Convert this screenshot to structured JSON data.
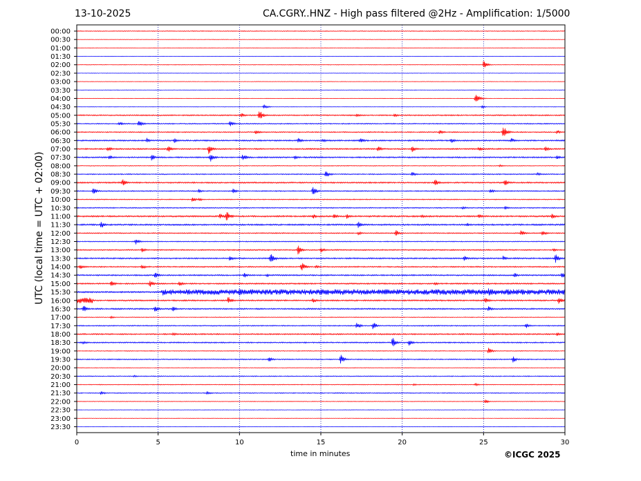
{
  "header": {
    "date": "13-10-2025",
    "title": "CA.CGRY..HNZ - High pass filtered @2Hz - Amplification: 1/5000"
  },
  "footer": {
    "copyright": "©ICGC 2025"
  },
  "colors": {
    "red": "#ff0000",
    "blue": "#0000ff",
    "grid": "#0000aa"
  },
  "chart_data": {
    "type": "line",
    "title": "CA.CGRY..HNZ - High pass filtered @2Hz - Amplification: 1/5000",
    "xlabel": "time in minutes",
    "ylabel": "UTC (local time = UTC + 02:00)",
    "xlim": [
      0,
      30
    ],
    "xticks": [
      "0",
      "5",
      "10",
      "15",
      "20",
      "25",
      "30"
    ],
    "grid": "vertical dotted at every 5 minutes",
    "row_colors": [
      "red",
      "red",
      "red",
      "blue",
      "red",
      "blue",
      "red",
      "blue",
      "red",
      "blue",
      "red",
      "blue",
      "red",
      "blue",
      "red",
      "blue",
      "red",
      "blue",
      "red",
      "blue",
      "red",
      "blue",
      "red",
      "blue",
      "red",
      "blue",
      "red",
      "blue",
      "red",
      "blue",
      "red",
      "blue",
      "red",
      "blue",
      "red",
      "blue",
      "red",
      "blue",
      "red",
      "blue",
      "red",
      "blue",
      "red",
      "blue",
      "red",
      "blue",
      "red",
      "blue"
    ],
    "rows": [
      "00:00",
      "00:30",
      "01:00",
      "01:30",
      "02:00",
      "02:30",
      "03:00",
      "03:30",
      "04:00",
      "04:30",
      "05:00",
      "05:30",
      "06:00",
      "06:30",
      "07:00",
      "07:30",
      "08:00",
      "08:30",
      "09:00",
      "09:30",
      "10:00",
      "10:30",
      "11:00",
      "11:30",
      "12:00",
      "12:30",
      "13:00",
      "13:30",
      "14:00",
      "14:30",
      "15:00",
      "15:30",
      "16:00",
      "16:30",
      "17:00",
      "17:30",
      "18:00",
      "18:30",
      "19:00",
      "19:30",
      "20:00",
      "20:30",
      "21:00",
      "21:30",
      "22:00",
      "22:30",
      "23:00",
      "23:30"
    ],
    "noise": [
      0.5,
      0.3,
      0.3,
      0.3,
      0.4,
      0.3,
      0.3,
      0.3,
      0.3,
      0.3,
      0.8,
      0.7,
      0.7,
      0.9,
      0.9,
      0.9,
      0.5,
      0.7,
      0.9,
      0.7,
      0.6,
      0.7,
      1.0,
      1.0,
      0.7,
      0.6,
      0.8,
      0.9,
      0.8,
      0.9,
      0.9,
      1.0,
      0.9,
      0.9,
      0.5,
      0.7,
      0.9,
      0.8,
      0.5,
      0.7,
      0.4,
      0.6,
      0.5,
      0.6,
      0.4,
      0.3,
      0.3,
      0.3
    ],
    "events": [
      {
        "row": 4,
        "t": 25.0,
        "amp": 6
      },
      {
        "row": 8,
        "t": 24.5,
        "amp": 9
      },
      {
        "row": 9,
        "t": 11.5,
        "amp": 4
      },
      {
        "row": 9,
        "t": 24.9,
        "amp": 2
      },
      {
        "row": 10,
        "t": 11.2,
        "amp": 9
      },
      {
        "row": 10,
        "t": 10.1,
        "amp": 4
      },
      {
        "row": 10,
        "t": 17.2,
        "amp": 3
      },
      {
        "row": 10,
        "t": 19.5,
        "amp": 3
      },
      {
        "row": 11,
        "t": 2.6,
        "amp": 4
      },
      {
        "row": 11,
        "t": 3.8,
        "amp": 6
      },
      {
        "row": 11,
        "t": 9.4,
        "amp": 5
      },
      {
        "row": 12,
        "t": 11.0,
        "amp": 4
      },
      {
        "row": 12,
        "t": 22.3,
        "amp": 4
      },
      {
        "row": 12,
        "t": 26.2,
        "amp": 10
      },
      {
        "row": 12,
        "t": 29.5,
        "amp": 3
      },
      {
        "row": 13,
        "t": 4.3,
        "amp": 4
      },
      {
        "row": 13,
        "t": 6.0,
        "amp": 4
      },
      {
        "row": 13,
        "t": 13.6,
        "amp": 4
      },
      {
        "row": 13,
        "t": 15.1,
        "amp": 4
      },
      {
        "row": 13,
        "t": 17.4,
        "amp": 5
      },
      {
        "row": 13,
        "t": 23.0,
        "amp": 4
      },
      {
        "row": 13,
        "t": 26.7,
        "amp": 4
      },
      {
        "row": 14,
        "t": 1.9,
        "amp": 5
      },
      {
        "row": 14,
        "t": 5.6,
        "amp": 6
      },
      {
        "row": 14,
        "t": 8.1,
        "amp": 8
      },
      {
        "row": 14,
        "t": 18.5,
        "amp": 5
      },
      {
        "row": 14,
        "t": 20.6,
        "amp": 5
      },
      {
        "row": 14,
        "t": 24.7,
        "amp": 4
      },
      {
        "row": 14,
        "t": 28.8,
        "amp": 4
      },
      {
        "row": 15,
        "t": 2.0,
        "amp": 4
      },
      {
        "row": 15,
        "t": 4.6,
        "amp": 5
      },
      {
        "row": 15,
        "t": 8.2,
        "amp": 7
      },
      {
        "row": 15,
        "t": 10.2,
        "amp": 6
      },
      {
        "row": 15,
        "t": 13.4,
        "amp": 3
      },
      {
        "row": 15,
        "t": 29.5,
        "amp": 4
      },
      {
        "row": 16,
        "t": 26.0,
        "amp": 2
      },
      {
        "row": 17,
        "t": 15.3,
        "amp": 6
      },
      {
        "row": 17,
        "t": 20.6,
        "amp": 4
      },
      {
        "row": 17,
        "t": 28.3,
        "amp": 3
      },
      {
        "row": 18,
        "t": 2.8,
        "amp": 6
      },
      {
        "row": 18,
        "t": 22.0,
        "amp": 6
      },
      {
        "row": 18,
        "t": 26.3,
        "amp": 6
      },
      {
        "row": 19,
        "t": 1.0,
        "amp": 6
      },
      {
        "row": 19,
        "t": 7.5,
        "amp": 3
      },
      {
        "row": 19,
        "t": 9.6,
        "amp": 4
      },
      {
        "row": 19,
        "t": 14.5,
        "amp": 7
      },
      {
        "row": 19,
        "t": 25.4,
        "amp": 4
      },
      {
        "row": 20,
        "t": 7.1,
        "amp": 4
      },
      {
        "row": 20,
        "t": 7.5,
        "amp": 3
      },
      {
        "row": 21,
        "t": 23.7,
        "amp": 3
      },
      {
        "row": 21,
        "t": 26.3,
        "amp": 3
      },
      {
        "row": 22,
        "t": 9.2,
        "amp": 9
      },
      {
        "row": 22,
        "t": 8.8,
        "amp": 5
      },
      {
        "row": 22,
        "t": 14.5,
        "amp": 4
      },
      {
        "row": 22,
        "t": 15.8,
        "amp": 4
      },
      {
        "row": 22,
        "t": 16.6,
        "amp": 4
      },
      {
        "row": 22,
        "t": 21.2,
        "amp": 3
      },
      {
        "row": 22,
        "t": 24.7,
        "amp": 4
      },
      {
        "row": 22,
        "t": 29.2,
        "amp": 4
      },
      {
        "row": 23,
        "t": 1.5,
        "amp": 6
      },
      {
        "row": 23,
        "t": 17.3,
        "amp": 5
      },
      {
        "row": 23,
        "t": 24.0,
        "amp": 3
      },
      {
        "row": 24,
        "t": 17.3,
        "amp": 3
      },
      {
        "row": 24,
        "t": 19.6,
        "amp": 6
      },
      {
        "row": 24,
        "t": 27.3,
        "amp": 5
      },
      {
        "row": 24,
        "t": 28.6,
        "amp": 5
      },
      {
        "row": 25,
        "t": 3.6,
        "amp": 5
      },
      {
        "row": 26,
        "t": 4.0,
        "amp": 4
      },
      {
        "row": 26,
        "t": 13.6,
        "amp": 7
      },
      {
        "row": 26,
        "t": 15.0,
        "amp": 4
      },
      {
        "row": 26,
        "t": 29.3,
        "amp": 3
      },
      {
        "row": 27,
        "t": 9.4,
        "amp": 4
      },
      {
        "row": 27,
        "t": 11.9,
        "amp": 9
      },
      {
        "row": 27,
        "t": 23.8,
        "amp": 4
      },
      {
        "row": 27,
        "t": 26.2,
        "amp": 4
      },
      {
        "row": 27,
        "t": 29.4,
        "amp": 8
      },
      {
        "row": 28,
        "t": 0.2,
        "amp": 4
      },
      {
        "row": 28,
        "t": 4.0,
        "amp": 4
      },
      {
        "row": 28,
        "t": 13.8,
        "amp": 8
      },
      {
        "row": 28,
        "t": 14.7,
        "amp": 3
      },
      {
        "row": 29,
        "t": 4.8,
        "amp": 5
      },
      {
        "row": 29,
        "t": 10.3,
        "amp": 4
      },
      {
        "row": 29,
        "t": 11.7,
        "amp": 3
      },
      {
        "row": 29,
        "t": 26.9,
        "amp": 4
      },
      {
        "row": 29,
        "t": 29.8,
        "amp": 5
      },
      {
        "row": 30,
        "t": 2.1,
        "amp": 5
      },
      {
        "row": 30,
        "t": 4.5,
        "amp": 6
      },
      {
        "row": 30,
        "t": 6.3,
        "amp": 4
      },
      {
        "row": 30,
        "t": 22.0,
        "amp": 3
      },
      {
        "row": 31,
        "t": 5.3,
        "amp": 6
      },
      {
        "row": 31,
        "t": 10.0,
        "amp": 6
      },
      {
        "row": 31,
        "t": 25.3,
        "amp": 7
      },
      {
        "row": 32,
        "t": 0.5,
        "amp": 5
      },
      {
        "row": 32,
        "t": 9.3,
        "amp": 6
      },
      {
        "row": 32,
        "t": 14.5,
        "amp": 4
      },
      {
        "row": 32,
        "t": 25.1,
        "amp": 5
      },
      {
        "row": 32,
        "t": 29.6,
        "amp": 6
      },
      {
        "row": 33,
        "t": 0.4,
        "amp": 6
      },
      {
        "row": 33,
        "t": 4.8,
        "amp": 5
      },
      {
        "row": 33,
        "t": 5.9,
        "amp": 4
      },
      {
        "row": 33,
        "t": 25.3,
        "amp": 4
      },
      {
        "row": 34,
        "t": 2.1,
        "amp": 2
      },
      {
        "row": 35,
        "t": 17.2,
        "amp": 5
      },
      {
        "row": 35,
        "t": 18.2,
        "amp": 6
      },
      {
        "row": 35,
        "t": 27.6,
        "amp": 4
      },
      {
        "row": 36,
        "t": 5.9,
        "amp": 3
      },
      {
        "row": 36,
        "t": 29.5,
        "amp": 3
      },
      {
        "row": 37,
        "t": 19.4,
        "amp": 8
      },
      {
        "row": 37,
        "t": 20.4,
        "amp": 5
      },
      {
        "row": 37,
        "t": 0.4,
        "amp": 3
      },
      {
        "row": 38,
        "t": 25.3,
        "amp": 5
      },
      {
        "row": 39,
        "t": 16.2,
        "amp": 8
      },
      {
        "row": 39,
        "t": 11.8,
        "amp": 4
      },
      {
        "row": 39,
        "t": 26.8,
        "amp": 5
      },
      {
        "row": 41,
        "t": 3.5,
        "amp": 2
      },
      {
        "row": 42,
        "t": 20.7,
        "amp": 2
      },
      {
        "row": 42,
        "t": 24.5,
        "amp": 2
      },
      {
        "row": 43,
        "t": 1.5,
        "amp": 3
      },
      {
        "row": 43,
        "t": 8.0,
        "amp": 3
      },
      {
        "row": 44,
        "t": 25.1,
        "amp": 3
      }
    ],
    "bursts": [
      {
        "row": 31,
        "from": 5.2,
        "to": 30.0,
        "amp": 4
      },
      {
        "row": 32,
        "from": 0.0,
        "to": 1.0,
        "amp": 4
      }
    ]
  }
}
